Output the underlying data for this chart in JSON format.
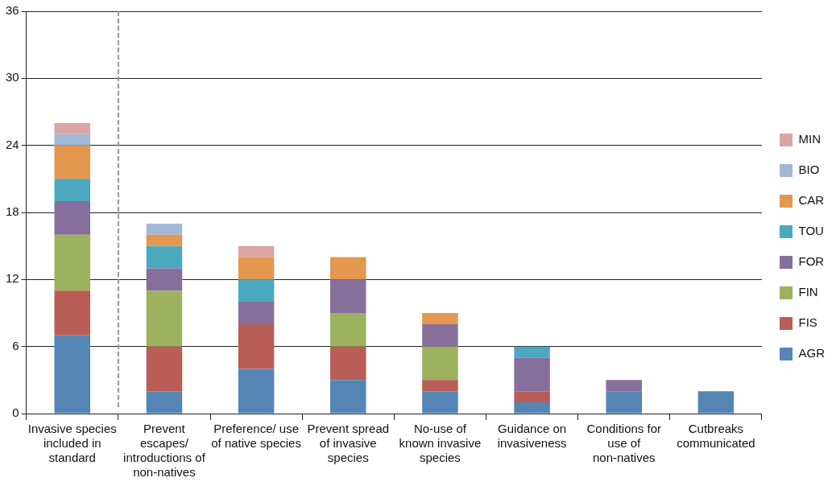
{
  "chart_data": {
    "type": "bar",
    "stacked": true,
    "categories": [
      "Invasive species included in standard",
      "Prevent escapes/ introductions of non-natives",
      "Preference/ use of native species",
      "Prevent spread of invasive species",
      "No-use of known invasive species",
      "Guidance on invasiveness",
      "Conditions for use of non-natives",
      "Cutbreaks communicated"
    ],
    "series": [
      {
        "name": "AGR",
        "color": "#5585b5",
        "values": [
          7,
          2,
          4,
          3,
          2,
          1,
          2,
          2
        ]
      },
      {
        "name": "FIS",
        "color": "#b95d57",
        "values": [
          4,
          4,
          4,
          3,
          1,
          1,
          0,
          0
        ]
      },
      {
        "name": "FIN",
        "color": "#9db15e",
        "values": [
          5,
          5,
          0,
          3,
          3,
          0,
          0,
          0
        ]
      },
      {
        "name": "FOR",
        "color": "#876f9d",
        "values": [
          3,
          2,
          2,
          3,
          2,
          3,
          1,
          0
        ]
      },
      {
        "name": "TOU",
        "color": "#4ca8bf",
        "values": [
          2,
          2,
          2,
          0,
          0,
          1,
          0,
          0
        ]
      },
      {
        "name": "CAR",
        "color": "#e4984f",
        "values": [
          3,
          1,
          2,
          2,
          1,
          0,
          0,
          0
        ]
      },
      {
        "name": "BIO",
        "color": "#a3b7d8",
        "values": [
          1,
          1,
          0,
          0,
          0,
          0,
          0,
          0
        ]
      },
      {
        "name": "MIN",
        "color": "#dba5a3",
        "values": [
          1,
          0,
          1,
          0,
          0,
          0,
          0,
          0
        ]
      }
    ],
    "ylim": [
      0,
      36
    ],
    "yticks": [
      0,
      6,
      12,
      18,
      24,
      30,
      36
    ],
    "grid": "y",
    "legend": "right"
  }
}
